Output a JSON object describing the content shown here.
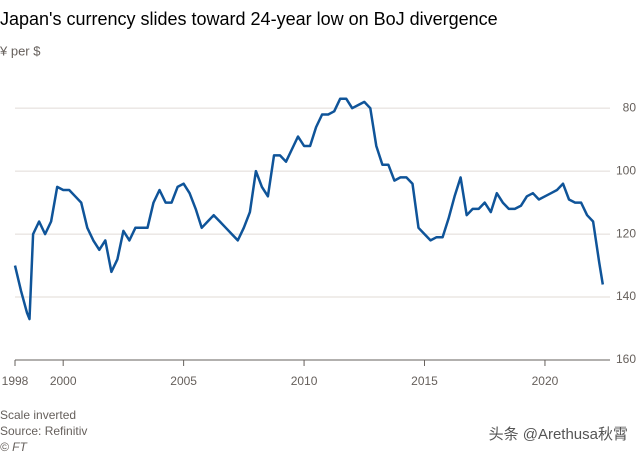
{
  "chart_data": {
    "type": "line",
    "title": "Japan's currency slides toward 24-year low on BoJ divergence",
    "subtitle": "¥ per $",
    "notes": [
      "Scale inverted",
      "Source: Refinitiv",
      "© FT"
    ],
    "watermark": "头条 @Arethusa秋霄",
    "x": [
      1998.0,
      1998.25,
      1998.5,
      1998.6,
      1998.75,
      1999.0,
      1999.25,
      1999.5,
      1999.75,
      2000.0,
      2000.25,
      2000.5,
      2000.75,
      2001.0,
      2001.25,
      2001.5,
      2001.75,
      2002.0,
      2002.25,
      2002.5,
      2002.75,
      2003.0,
      2003.25,
      2003.5,
      2003.75,
      2004.0,
      2004.25,
      2004.5,
      2004.75,
      2005.0,
      2005.25,
      2005.5,
      2005.75,
      2006.0,
      2006.25,
      2006.5,
      2006.75,
      2007.0,
      2007.25,
      2007.5,
      2007.75,
      2008.0,
      2008.25,
      2008.5,
      2008.75,
      2009.0,
      2009.25,
      2009.5,
      2009.75,
      2010.0,
      2010.25,
      2010.5,
      2010.75,
      2011.0,
      2011.25,
      2011.5,
      2011.75,
      2012.0,
      2012.25,
      2012.5,
      2012.75,
      2013.0,
      2013.25,
      2013.5,
      2013.75,
      2014.0,
      2014.25,
      2014.5,
      2014.75,
      2015.0,
      2015.25,
      2015.5,
      2015.75,
      2016.0,
      2016.25,
      2016.5,
      2016.75,
      2017.0,
      2017.25,
      2017.5,
      2017.75,
      2018.0,
      2018.25,
      2018.5,
      2018.75,
      2019.0,
      2019.25,
      2019.5,
      2019.75,
      2020.0,
      2020.25,
      2020.5,
      2020.75,
      2021.0,
      2021.25,
      2021.5,
      2021.75,
      2022.0,
      2022.25,
      2022.4
    ],
    "series": [
      {
        "name": "¥ per $",
        "color": "#0f5499",
        "values": [
          130,
          138,
          145,
          147,
          120,
          116,
          120,
          116,
          105,
          106,
          106,
          108,
          110,
          118,
          122,
          125,
          122,
          132,
          128,
          119,
          122,
          118,
          118,
          118,
          110,
          106,
          110,
          110,
          105,
          104,
          107,
          112,
          118,
          116,
          114,
          116,
          118,
          120,
          122,
          118,
          113,
          100,
          105,
          108,
          95,
          95,
          97,
          93,
          89,
          92,
          92,
          86,
          82,
          82,
          81,
          77,
          77,
          80,
          79,
          78,
          80,
          92,
          98,
          98,
          103,
          102,
          102,
          104,
          118,
          120,
          122,
          121,
          121,
          115,
          108,
          102,
          114,
          112,
          112,
          110,
          113,
          107,
          110,
          112,
          112,
          111,
          108,
          107,
          109,
          108,
          107,
          106,
          104,
          109,
          110,
          110,
          114,
          116,
          129,
          136
        ]
      }
    ],
    "xlim": [
      1998,
      2022.7
    ],
    "xticks": [
      1998,
      2000,
      2005,
      2010,
      2015,
      2020
    ],
    "ylim": [
      72,
      160
    ],
    "yticks": [
      80,
      100,
      120,
      140,
      160
    ],
    "y_inverted": true,
    "grid": true
  }
}
